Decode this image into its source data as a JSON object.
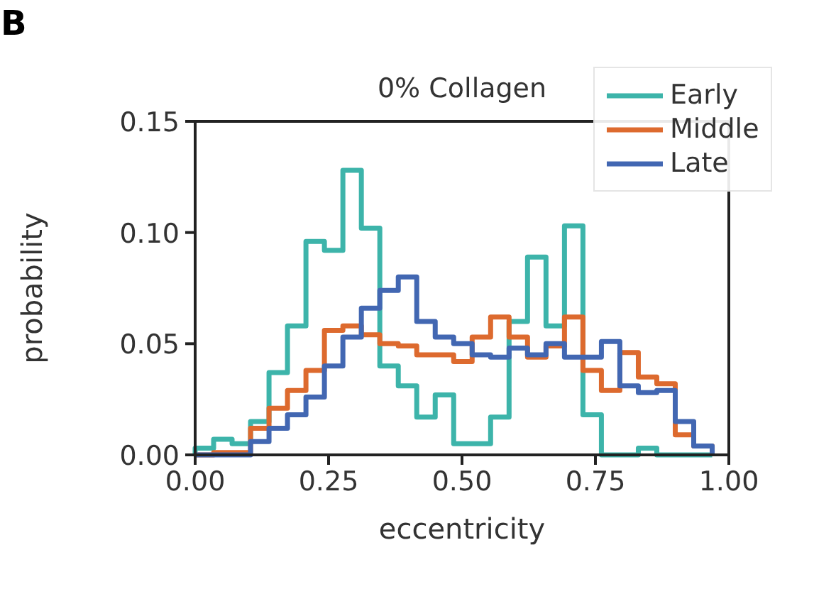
{
  "chart_data": {
    "type": "histogram",
    "title": "0% Collagen",
    "xlabel": "eccentricity",
    "ylabel": "probability",
    "bins": [
      0,
      0.0346,
      0.0692,
      0.1038,
      0.1384,
      0.173,
      0.2076,
      0.2422,
      0.2768,
      0.3114,
      0.346,
      0.3806,
      0.4152,
      0.4498,
      0.4844,
      0.519,
      0.5536,
      0.5882,
      0.6228,
      0.6574,
      0.692,
      0.7266,
      0.7612,
      0.7958,
      0.8304,
      0.865,
      0.8996,
      0.9342,
      0.9688
    ],
    "series": [
      {
        "name": "Early",
        "color": "#3db4aa",
        "values": [
          0.003,
          0.007,
          0.005,
          0.015,
          0.037,
          0.058,
          0.096,
          0.092,
          0.128,
          0.102,
          0.04,
          0.031,
          0.017,
          0.027,
          0.005,
          0.005,
          0.017,
          0.06,
          0.089,
          0.058,
          0.103,
          0.018,
          0,
          0,
          0.003,
          0,
          0,
          0
        ]
      },
      {
        "name": "Middle",
        "color": "#dd6a2e",
        "values": [
          0,
          0.001,
          0.001,
          0.012,
          0.021,
          0.029,
          0.038,
          0.056,
          0.058,
          0.054,
          0.05,
          0.049,
          0.045,
          0.045,
          0.042,
          0.053,
          0.062,
          0.053,
          0.044,
          0.049,
          0.062,
          0.038,
          0.029,
          0.046,
          0.035,
          0.032,
          0.009,
          0.004
        ]
      },
      {
        "name": "Late",
        "color": "#4267b2",
        "values": [
          0,
          0,
          0,
          0.006,
          0.012,
          0.018,
          0.026,
          0.04,
          0.053,
          0.066,
          0.074,
          0.08,
          0.06,
          0.053,
          0.05,
          0.045,
          0.044,
          0.048,
          0.045,
          0.05,
          0.044,
          0.044,
          0.051,
          0.031,
          0.028,
          0.029,
          0.015,
          0.004
        ]
      }
    ],
    "xlim": [
      0,
      1
    ],
    "ylim": [
      0,
      0.15
    ],
    "xticks": [
      {
        "value": 0,
        "label": "0.00"
      },
      0.25,
      {
        "value": 0.5,
        "label": "0.50"
      },
      0.75,
      {
        "value": 1,
        "label": "1.00"
      }
    ],
    "yticks": [
      {
        "value": 0,
        "label": "0.00"
      },
      0.05,
      {
        "value": 0.1,
        "label": "0.10"
      },
      0.15
    ],
    "legend": "top right",
    "grid": false,
    "annotations": [
      "B"
    ]
  }
}
